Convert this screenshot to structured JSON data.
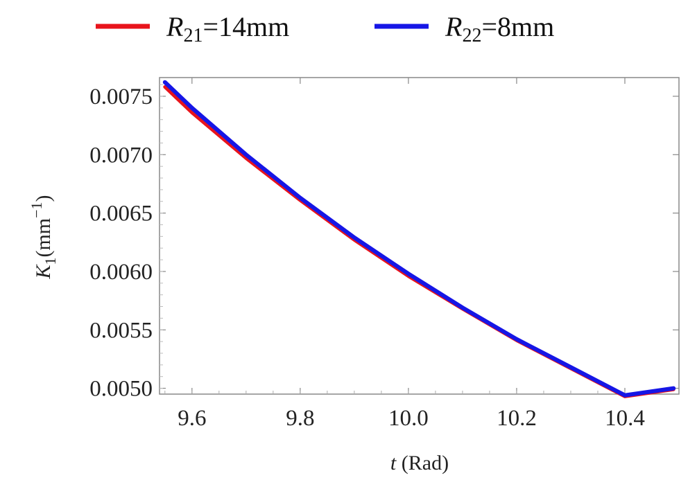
{
  "chart_data": {
    "type": "line",
    "title": "",
    "xlabel": {
      "var": "t",
      "unit": "(Rad)"
    },
    "ylabel": {
      "var": "K",
      "sub": "1",
      "unit_pre": "(mm",
      "sup": "−1",
      "unit_post": ")"
    },
    "xlim": [
      9.54,
      10.5
    ],
    "ylim": [
      0.00495,
      0.00766
    ],
    "x_ticks": [
      9.6,
      9.8,
      10.0,
      10.2,
      10.4
    ],
    "x_tick_labels": [
      "9.6",
      "9.8",
      "10.0",
      "10.2",
      "10.4"
    ],
    "y_ticks": [
      0.005,
      0.0055,
      0.006,
      0.0065,
      0.007,
      0.0075
    ],
    "y_tick_labels": [
      "0.0050",
      "0.0055",
      "0.0060",
      "0.0065",
      "0.0070",
      "0.0075"
    ],
    "grid": false,
    "legend_position": "top",
    "series": [
      {
        "name": {
          "var": "R",
          "sub": "21",
          "rest": "=14mm"
        },
        "color": "#e8141c",
        "x": [
          9.55,
          9.6,
          9.7,
          9.8,
          9.9,
          10.0,
          10.1,
          10.2,
          10.3,
          10.4,
          10.49
        ],
        "y": [
          0.00758,
          0.00736,
          0.00697,
          0.00661,
          0.00627,
          0.00596,
          0.00568,
          0.00541,
          0.00517,
          0.00493,
          0.00499
        ]
      },
      {
        "name": {
          "var": "R",
          "sub": "22",
          "rest": "=8mm"
        },
        "color": "#1616e6",
        "x": [
          9.55,
          9.6,
          9.7,
          9.8,
          9.9,
          10.0,
          10.1,
          10.2,
          10.3,
          10.4,
          10.49
        ],
        "y": [
          0.00762,
          0.0074,
          0.007,
          0.00663,
          0.00629,
          0.00598,
          0.00569,
          0.00542,
          0.00518,
          0.00494,
          0.005
        ]
      }
    ]
  }
}
